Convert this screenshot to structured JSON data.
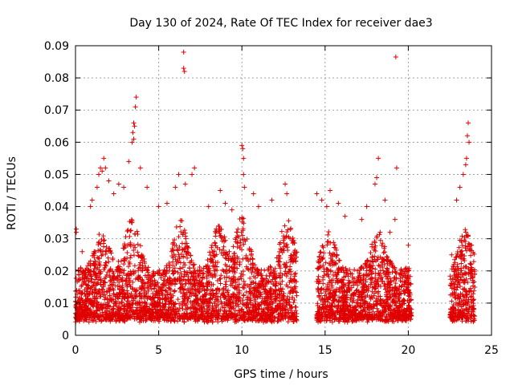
{
  "chart_data": {
    "type": "scatter",
    "title": "Day 130 of 2024, Rate Of TEC Index for receiver dae3",
    "xlabel": "GPS time / hours",
    "ylabel": "ROTI / TECUs",
    "xlim": [
      0,
      25
    ],
    "ylim": [
      0,
      0.09
    ],
    "xticks": [
      "0",
      "5",
      "10",
      "15",
      "20",
      "25"
    ],
    "yticks": [
      "0",
      "0.01",
      "0.02",
      "0.03",
      "0.04",
      "0.05",
      "0.06",
      "0.07",
      "0.08",
      "0.09"
    ],
    "grid": true,
    "marker": "+",
    "color": "#e00000",
    "data_gaps_hours": [
      [
        13.3,
        14.5
      ],
      [
        20.2,
        22.5
      ]
    ],
    "series": [
      {
        "points": [
          [
            0.05,
            0.033
          ],
          [
            0.05,
            0.032
          ],
          [
            0.4,
            0.026
          ],
          [
            0.9,
            0.04
          ],
          [
            1.0,
            0.042
          ],
          [
            1.3,
            0.046
          ],
          [
            1.4,
            0.05
          ],
          [
            1.5,
            0.052
          ],
          [
            1.6,
            0.051
          ],
          [
            1.7,
            0.055
          ],
          [
            1.8,
            0.052
          ],
          [
            2.0,
            0.048
          ],
          [
            2.3,
            0.044
          ],
          [
            2.6,
            0.047
          ],
          [
            2.9,
            0.046
          ],
          [
            3.2,
            0.054
          ],
          [
            3.4,
            0.06
          ],
          [
            3.5,
            0.061
          ],
          [
            3.45,
            0.063
          ],
          [
            3.5,
            0.066
          ],
          [
            3.55,
            0.065
          ],
          [
            3.6,
            0.071
          ],
          [
            3.65,
            0.074
          ],
          [
            3.9,
            0.052
          ],
          [
            4.3,
            0.046
          ],
          [
            5.0,
            0.04
          ],
          [
            5.5,
            0.041
          ],
          [
            6.0,
            0.046
          ],
          [
            6.2,
            0.05
          ],
          [
            6.5,
            0.088
          ],
          [
            6.5,
            0.083
          ],
          [
            6.55,
            0.082
          ],
          [
            6.6,
            0.047
          ],
          [
            7.0,
            0.05
          ],
          [
            7.15,
            0.052
          ],
          [
            8.0,
            0.04
          ],
          [
            8.7,
            0.045
          ],
          [
            9.0,
            0.041
          ],
          [
            9.4,
            0.039
          ],
          [
            10.0,
            0.059
          ],
          [
            10.05,
            0.058
          ],
          [
            10.1,
            0.055
          ],
          [
            10.1,
            0.05
          ],
          [
            10.15,
            0.046
          ],
          [
            10.7,
            0.044
          ],
          [
            11.0,
            0.04
          ],
          [
            11.8,
            0.042
          ],
          [
            12.6,
            0.047
          ],
          [
            12.7,
            0.044
          ],
          [
            13.1,
            0.025
          ],
          [
            14.5,
            0.044
          ],
          [
            14.8,
            0.042
          ],
          [
            15.1,
            0.04
          ],
          [
            15.3,
            0.045
          ],
          [
            15.8,
            0.041
          ],
          [
            16.2,
            0.037
          ],
          [
            17.2,
            0.036
          ],
          [
            17.5,
            0.04
          ],
          [
            18.0,
            0.047
          ],
          [
            18.1,
            0.049
          ],
          [
            18.2,
            0.055
          ],
          [
            18.6,
            0.042
          ],
          [
            18.9,
            0.032
          ],
          [
            19.2,
            0.036
          ],
          [
            19.25,
            0.0865
          ],
          [
            19.3,
            0.052
          ],
          [
            20.0,
            0.028
          ],
          [
            22.6,
            0.025
          ],
          [
            22.9,
            0.042
          ],
          [
            23.1,
            0.046
          ],
          [
            23.3,
            0.05
          ],
          [
            23.45,
            0.053
          ],
          [
            23.5,
            0.055
          ],
          [
            23.55,
            0.062
          ],
          [
            23.6,
            0.066
          ],
          [
            23.65,
            0.06
          ],
          [
            23.8,
            0.028
          ]
        ]
      }
    ]
  }
}
